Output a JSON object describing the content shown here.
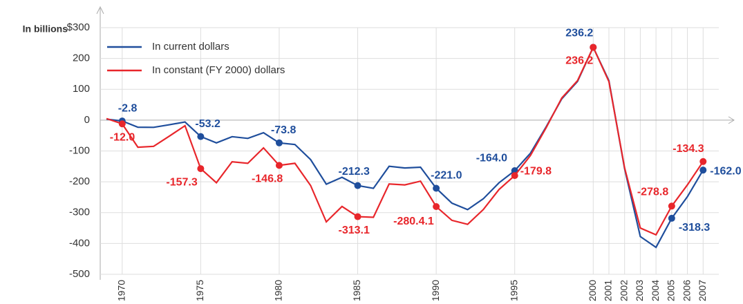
{
  "chart_data": {
    "type": "line",
    "ylabel": "In billions",
    "x": [
      1969,
      1970,
      1971,
      1972,
      1973,
      1974,
      1975,
      1976,
      1977,
      1978,
      1979,
      1980,
      1981,
      1982,
      1983,
      1984,
      1985,
      1986,
      1987,
      1988,
      1989,
      1990,
      1991,
      1992,
      1993,
      1994,
      1995,
      1996,
      1997,
      1998,
      1999,
      2000,
      2001,
      2002,
      2003,
      2004,
      2005,
      2006,
      2007
    ],
    "series": [
      {
        "name": "In current dollars",
        "color": "#1f4e9c",
        "values": [
          3.2,
          -2.8,
          -23.0,
          -23.4,
          -14.9,
          -6.1,
          -53.2,
          -73.7,
          -53.7,
          -59.2,
          -40.7,
          -73.8,
          -79.0,
          -128.0,
          -207.8,
          -185.4,
          -212.3,
          -221.2,
          -149.7,
          -155.2,
          -152.6,
          -221.0,
          -269.2,
          -290.3,
          -255.1,
          -203.2,
          -164.0,
          -107.4,
          -21.9,
          69.3,
          125.6,
          236.2,
          128.2,
          -157.8,
          -377.6,
          -412.7,
          -318.3,
          -248.2,
          -162.0
        ],
        "value_labels": [
          null,
          "-2.8",
          null,
          null,
          null,
          null,
          "-53.2",
          null,
          null,
          null,
          null,
          "-73.8",
          null,
          null,
          null,
          null,
          "-212.3",
          null,
          null,
          null,
          null,
          "-221.0",
          null,
          null,
          null,
          null,
          "-164.0",
          null,
          null,
          null,
          null,
          "236.2",
          null,
          null,
          null,
          null,
          "-318.3",
          null,
          "-162.0"
        ]
      },
      {
        "name": "In constant (FY 2000) dollars",
        "color": "#e8262b",
        "values": [
          5,
          -12.0,
          -88,
          -85,
          -52,
          -18,
          -157.3,
          -203,
          -135,
          -140,
          -90,
          -146.8,
          -140,
          -212,
          -330,
          -280,
          -313.1,
          -315,
          -207,
          -210,
          -198,
          -280.4,
          -325,
          -338,
          -290,
          -225,
          -179.8,
          -115,
          -25,
          72,
          128,
          236.2,
          125,
          -155,
          -350,
          -372,
          -278.8,
          -210,
          -134.3
        ],
        "value_labels": [
          null,
          "-12.0",
          null,
          null,
          null,
          null,
          "-157.3",
          null,
          null,
          null,
          null,
          "-146.8",
          null,
          null,
          null,
          null,
          "-313.1",
          null,
          null,
          null,
          null,
          "-280.4.1",
          null,
          null,
          null,
          null,
          "-179.8",
          null,
          null,
          null,
          null,
          "236.2",
          null,
          null,
          null,
          null,
          "-278.8",
          null,
          "-134.3"
        ]
      }
    ],
    "xlim": [
      1968.6,
      2008
    ],
    "xticks": [
      1970,
      1975,
      1980,
      1985,
      1990,
      1995,
      2000,
      2001,
      2002,
      2003,
      2004,
      2005,
      2006,
      2007
    ],
    "ylim": [
      -500,
      300
    ],
    "yticks": [
      -500,
      -400,
      -300,
      -200,
      -100,
      0,
      100,
      200,
      {
        "value": 300,
        "label": "$300"
      }
    ],
    "grid": true,
    "legend": "upper left"
  }
}
